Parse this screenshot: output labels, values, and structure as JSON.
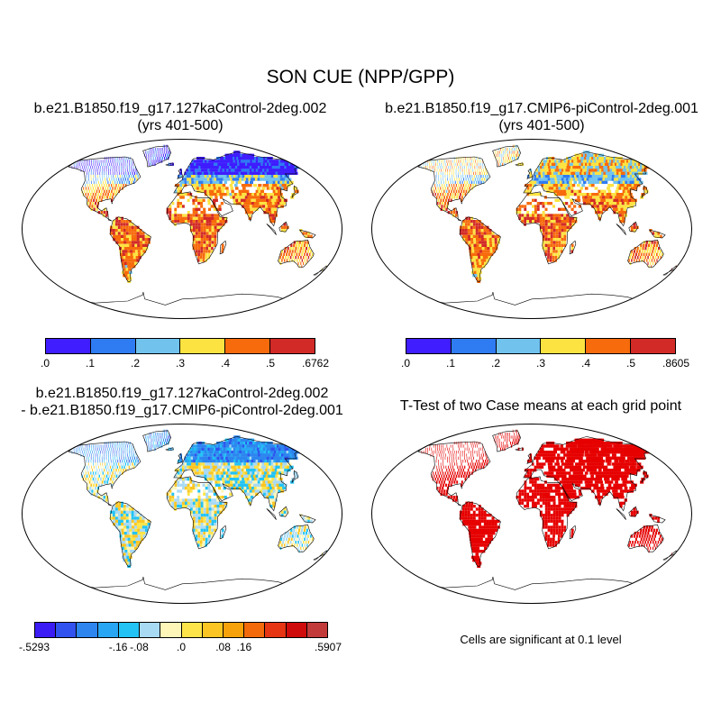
{
  "title": "SON CUE (NPP/GPP)",
  "panels": [
    {
      "id": "p1",
      "title_line1": "b.e21.B1850.f19_g17.127kaControl-2deg.002",
      "title_line2": "(yrs 401-500)"
    },
    {
      "id": "p2",
      "title_line1": "b.e21.B1850.f19_g17.CMIP6-piControl-2deg.001",
      "title_line2": "(yrs 401-500)"
    },
    {
      "id": "p3",
      "title_line1": "b.e21.B1850.f19_g17.127kaControl-2deg.002",
      "title_line2": "- b.e21.B1850.f19_g17.CMIP6-piControl-2deg.001"
    },
    {
      "id": "p4",
      "title_line1": "T-Test of two Case means at each grid point",
      "title_line2": ""
    }
  ],
  "colorbars": {
    "case1": {
      "colors": [
        "#3f1dff",
        "#2f7bf2",
        "#71c3ee",
        "#fde342",
        "#f76b0c",
        "#d22a27"
      ],
      "labels": [
        ".0",
        ".1",
        ".2",
        ".3",
        ".4",
        ".5",
        ".6762"
      ]
    },
    "case2": {
      "colors": [
        "#3f1dff",
        "#2f7bf2",
        "#71c3ee",
        "#fde342",
        "#f76b0c",
        "#d22a27"
      ],
      "labels": [
        ".0",
        ".1",
        ".2",
        ".3",
        ".4",
        ".5",
        ".8605"
      ]
    },
    "diff": {
      "colors": [
        "#3b1cf5",
        "#3152ee",
        "#2d86ef",
        "#29a6f3",
        "#23c3f5",
        "#a9daf4",
        "#fef6b8",
        "#fde44a",
        "#fbc623",
        "#f7a20b",
        "#f26a0b",
        "#e53513",
        "#cf0b0b",
        "#c23a3a"
      ],
      "labels": [
        "-.5293",
        "-.16",
        "-.08",
        ".0",
        ".08",
        ".16",
        ".5907"
      ]
    }
  },
  "significance_color": "#e60000",
  "note": "Cells are significant at 0.1 level"
}
